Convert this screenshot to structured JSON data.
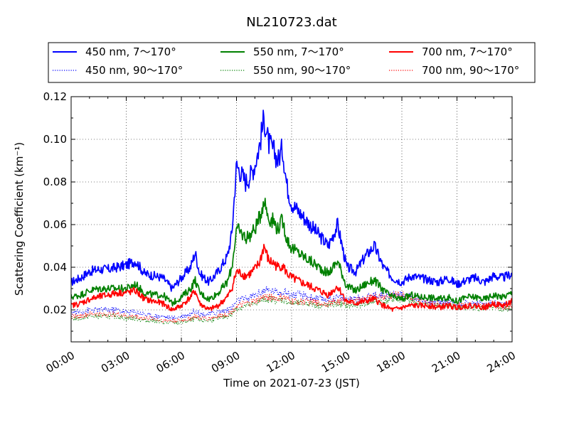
{
  "chart_data": {
    "type": "line",
    "title": "NL210723.dat",
    "xlabel": "Time on 2021-07-23 (JST)",
    "ylabel": "Scattering Coefficient (km⁻¹)",
    "x_unit": "hours",
    "xlim": [
      0,
      24
    ],
    "ylim": [
      0.005,
      0.12
    ],
    "yticks": [
      0.02,
      0.04,
      0.06,
      0.08,
      0.1,
      0.12
    ],
    "ytick_labels": [
      "0.02",
      "0.04",
      "0.06",
      "0.08",
      "0.10",
      "0.12"
    ],
    "xticks": [
      0,
      3,
      6,
      9,
      12,
      15,
      18,
      21,
      24
    ],
    "xtick_labels": [
      "00:00",
      "03:00",
      "06:00",
      "09:00",
      "12:00",
      "15:00",
      "18:00",
      "21:00",
      "24:00"
    ],
    "grid": true,
    "legend_position": "above plot, 3 columns",
    "x": [
      0,
      0.5,
      1,
      1.5,
      2,
      2.5,
      3,
      3.5,
      4,
      4.5,
      5,
      5.5,
      6,
      6.5,
      6.75,
      7,
      7.5,
      8,
      8.5,
      8.75,
      9,
      9.25,
      9.5,
      9.75,
      10,
      10.25,
      10.5,
      10.75,
      11,
      11.25,
      11.5,
      11.75,
      12,
      12.5,
      13,
      13.5,
      14,
      14.5,
      15,
      15.5,
      16,
      16.5,
      17,
      17.5,
      18,
      18.5,
      19,
      19.5,
      20,
      20.5,
      21,
      21.5,
      22,
      22.5,
      23,
      23.5,
      24
    ],
    "series": [
      {
        "name": "450 nm, 7～170°",
        "color": "#0000ff",
        "style": "solid",
        "values": [
          0.033,
          0.035,
          0.038,
          0.039,
          0.039,
          0.04,
          0.041,
          0.043,
          0.037,
          0.036,
          0.035,
          0.03,
          0.035,
          0.04,
          0.047,
          0.037,
          0.033,
          0.038,
          0.045,
          0.056,
          0.088,
          0.084,
          0.08,
          0.083,
          0.088,
          0.097,
          0.11,
          0.098,
          0.095,
          0.09,
          0.096,
          0.078,
          0.07,
          0.065,
          0.06,
          0.055,
          0.05,
          0.06,
          0.04,
          0.038,
          0.045,
          0.05,
          0.04,
          0.035,
          0.033,
          0.036,
          0.035,
          0.034,
          0.033,
          0.035,
          0.032,
          0.034,
          0.035,
          0.033,
          0.036,
          0.035,
          0.037
        ]
      },
      {
        "name": "550 nm, 7～170°",
        "color": "#008000",
        "style": "solid",
        "values": [
          0.026,
          0.027,
          0.029,
          0.03,
          0.03,
          0.03,
          0.03,
          0.032,
          0.028,
          0.027,
          0.027,
          0.023,
          0.026,
          0.03,
          0.034,
          0.028,
          0.025,
          0.028,
          0.033,
          0.04,
          0.058,
          0.056,
          0.054,
          0.055,
          0.058,
          0.063,
          0.072,
          0.063,
          0.062,
          0.058,
          0.062,
          0.053,
          0.049,
          0.046,
          0.043,
          0.04,
          0.037,
          0.043,
          0.031,
          0.029,
          0.032,
          0.034,
          0.029,
          0.026,
          0.025,
          0.027,
          0.026,
          0.026,
          0.025,
          0.026,
          0.024,
          0.026,
          0.026,
          0.025,
          0.027,
          0.026,
          0.028
        ]
      },
      {
        "name": "700 nm, 7～170°",
        "color": "#ff0000",
        "style": "solid",
        "values": [
          0.022,
          0.023,
          0.025,
          0.026,
          0.027,
          0.028,
          0.028,
          0.029,
          0.025,
          0.024,
          0.023,
          0.02,
          0.022,
          0.026,
          0.029,
          0.023,
          0.02,
          0.022,
          0.026,
          0.03,
          0.038,
          0.037,
          0.036,
          0.037,
          0.039,
          0.042,
          0.05,
          0.043,
          0.042,
          0.04,
          0.041,
          0.037,
          0.035,
          0.033,
          0.031,
          0.029,
          0.027,
          0.031,
          0.024,
          0.023,
          0.024,
          0.025,
          0.022,
          0.02,
          0.021,
          0.022,
          0.022,
          0.022,
          0.021,
          0.022,
          0.021,
          0.022,
          0.022,
          0.021,
          0.023,
          0.022,
          0.024
        ]
      },
      {
        "name": "450 nm, 90～170°",
        "color": "#0000ff",
        "style": "dotted",
        "values": [
          0.019,
          0.019,
          0.02,
          0.02,
          0.02,
          0.02,
          0.019,
          0.019,
          0.018,
          0.017,
          0.017,
          0.016,
          0.017,
          0.018,
          0.02,
          0.018,
          0.018,
          0.019,
          0.02,
          0.021,
          0.024,
          0.025,
          0.025,
          0.026,
          0.027,
          0.028,
          0.029,
          0.029,
          0.029,
          0.028,
          0.029,
          0.028,
          0.027,
          0.027,
          0.026,
          0.025,
          0.025,
          0.026,
          0.025,
          0.025,
          0.026,
          0.027,
          0.027,
          0.027,
          0.027,
          0.026,
          0.025,
          0.024,
          0.024,
          0.024,
          0.023,
          0.023,
          0.023,
          0.023,
          0.023,
          0.022,
          0.023
        ]
      },
      {
        "name": "550 nm, 90～170°",
        "color": "#008000",
        "style": "dotted",
        "values": [
          0.016,
          0.016,
          0.017,
          0.017,
          0.017,
          0.017,
          0.016,
          0.016,
          0.015,
          0.015,
          0.014,
          0.014,
          0.014,
          0.015,
          0.016,
          0.015,
          0.015,
          0.016,
          0.017,
          0.018,
          0.021,
          0.021,
          0.022,
          0.022,
          0.023,
          0.024,
          0.025,
          0.025,
          0.025,
          0.024,
          0.025,
          0.024,
          0.023,
          0.023,
          0.023,
          0.022,
          0.022,
          0.023,
          0.022,
          0.022,
          0.023,
          0.024,
          0.024,
          0.025,
          0.025,
          0.024,
          0.023,
          0.022,
          0.022,
          0.022,
          0.021,
          0.021,
          0.021,
          0.021,
          0.021,
          0.02,
          0.021
        ]
      },
      {
        "name": "700 nm, 90～170°",
        "color": "#ff0000",
        "style": "dotted",
        "values": [
          0.017,
          0.017,
          0.018,
          0.018,
          0.018,
          0.018,
          0.017,
          0.017,
          0.016,
          0.016,
          0.015,
          0.015,
          0.015,
          0.016,
          0.017,
          0.016,
          0.016,
          0.017,
          0.018,
          0.019,
          0.022,
          0.022,
          0.023,
          0.023,
          0.024,
          0.025,
          0.026,
          0.026,
          0.026,
          0.025,
          0.026,
          0.025,
          0.024,
          0.024,
          0.024,
          0.023,
          0.023,
          0.024,
          0.024,
          0.024,
          0.025,
          0.026,
          0.026,
          0.027,
          0.027,
          0.026,
          0.024,
          0.023,
          0.023,
          0.023,
          0.022,
          0.022,
          0.022,
          0.022,
          0.022,
          0.021,
          0.022
        ]
      }
    ]
  }
}
